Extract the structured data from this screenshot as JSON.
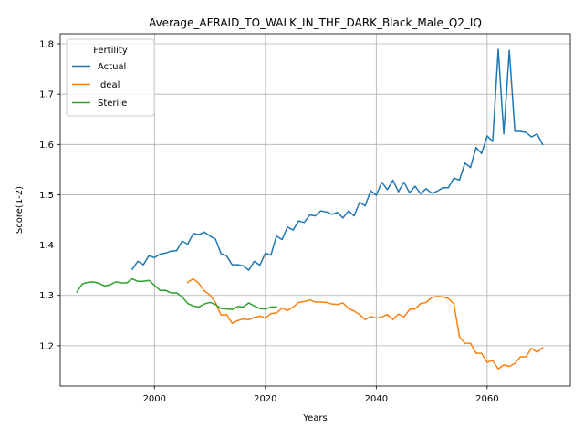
{
  "chart_data": {
    "type": "line",
    "title": "Average_AFRAID_TO_WALK_IN_THE_DARK_Black_Male_Q2_IQ",
    "xlabel": "Years",
    "ylabel": "Score(1-2)",
    "xlim": [
      1983,
      2075
    ],
    "ylim": [
      1.12,
      1.82
    ],
    "xticks": [
      2000,
      2020,
      2040,
      2060
    ],
    "yticks": [
      1.2,
      1.3,
      1.4,
      1.5,
      1.6,
      1.7,
      1.8
    ],
    "grid": true,
    "legend": {
      "title": "Fertility",
      "placement": "top-left"
    },
    "series": [
      {
        "name": "Actual",
        "color": "#1f77b4",
        "x": [
          1996,
          1997,
          1998,
          1999,
          2000,
          2001,
          2002,
          2003,
          2004,
          2005,
          2006,
          2007,
          2008,
          2009,
          2010,
          2011,
          2012,
          2013,
          2014,
          2015,
          2016,
          2017,
          2018,
          2019,
          2020,
          2021,
          2022,
          2023,
          2024,
          2025,
          2026,
          2027,
          2028,
          2029,
          2030,
          2031,
          2032,
          2033,
          2034,
          2035,
          2036,
          2037,
          2038,
          2039,
          2040,
          2041,
          2042,
          2043,
          2044,
          2045,
          2046,
          2047,
          2048,
          2049,
          2050,
          2051,
          2052,
          2053,
          2054,
          2055,
          2056,
          2057,
          2058,
          2059,
          2060,
          2061,
          2062,
          2063,
          2064,
          2065,
          2066,
          2067,
          2068,
          2069,
          2070
        ],
        "y": [
          1.352,
          1.368,
          1.361,
          1.379,
          1.375,
          1.382,
          1.384,
          1.388,
          1.389,
          1.408,
          1.402,
          1.423,
          1.421,
          1.426,
          1.418,
          1.412,
          1.383,
          1.379,
          1.361,
          1.361,
          1.359,
          1.35,
          1.368,
          1.36,
          1.384,
          1.38,
          1.418,
          1.411,
          1.436,
          1.43,
          1.448,
          1.445,
          1.46,
          1.458,
          1.468,
          1.466,
          1.461,
          1.465,
          1.454,
          1.468,
          1.458,
          1.485,
          1.478,
          1.508,
          1.499,
          1.525,
          1.51,
          1.529,
          1.506,
          1.525,
          1.504,
          1.517,
          1.502,
          1.512,
          1.503,
          1.507,
          1.514,
          1.514,
          1.533,
          1.529,
          1.563,
          1.554,
          1.594,
          1.582,
          1.617,
          1.606,
          1.789,
          1.621,
          1.787,
          1.626,
          1.626,
          1.624,
          1.615,
          1.621,
          1.6
        ]
      },
      {
        "name": "Ideal",
        "color": "#ff7f0e",
        "x": [
          2006,
          2007,
          2008,
          2009,
          2010,
          2011,
          2012,
          2013,
          2014,
          2015,
          2016,
          2017,
          2018,
          2019,
          2020,
          2021,
          2022,
          2023,
          2024,
          2025,
          2026,
          2027,
          2028,
          2029,
          2030,
          2031,
          2032,
          2033,
          2034,
          2035,
          2036,
          2037,
          2038,
          2039,
          2040,
          2041,
          2042,
          2043,
          2044,
          2045,
          2046,
          2047,
          2048,
          2049,
          2050,
          2051,
          2052,
          2053,
          2054,
          2055,
          2056,
          2057,
          2058,
          2059,
          2060,
          2061,
          2062,
          2063,
          2064,
          2065,
          2066,
          2067,
          2068,
          2069,
          2070
        ],
        "y": [
          1.326,
          1.333,
          1.324,
          1.309,
          1.301,
          1.286,
          1.261,
          1.262,
          1.245,
          1.25,
          1.253,
          1.252,
          1.256,
          1.259,
          1.255,
          1.264,
          1.265,
          1.275,
          1.27,
          1.277,
          1.286,
          1.288,
          1.291,
          1.287,
          1.287,
          1.286,
          1.283,
          1.282,
          1.285,
          1.274,
          1.269,
          1.262,
          1.252,
          1.258,
          1.255,
          1.257,
          1.262,
          1.252,
          1.263,
          1.257,
          1.272,
          1.273,
          1.284,
          1.286,
          1.296,
          1.298,
          1.297,
          1.294,
          1.283,
          1.218,
          1.205,
          1.205,
          1.185,
          1.185,
          1.167,
          1.171,
          1.154,
          1.162,
          1.159,
          1.165,
          1.178,
          1.178,
          1.195,
          1.187,
          1.196
        ]
      },
      {
        "name": "Sterile",
        "color": "#2ca02c",
        "x": [
          1986,
          1987,
          1988,
          1989,
          1990,
          1991,
          1992,
          1993,
          1994,
          1995,
          1996,
          1997,
          1998,
          1999,
          2000,
          2001,
          2002,
          2003,
          2004,
          2005,
          2006,
          2007,
          2008,
          2009,
          2010,
          2011,
          2012,
          2013,
          2014,
          2015,
          2016,
          2017,
          2018,
          2019,
          2020,
          2021,
          2022
        ],
        "y": [
          1.307,
          1.323,
          1.326,
          1.327,
          1.324,
          1.319,
          1.321,
          1.327,
          1.325,
          1.325,
          1.333,
          1.328,
          1.328,
          1.33,
          1.32,
          1.31,
          1.31,
          1.305,
          1.305,
          1.297,
          1.284,
          1.279,
          1.277,
          1.283,
          1.286,
          1.282,
          1.274,
          1.273,
          1.272,
          1.278,
          1.277,
          1.285,
          1.279,
          1.274,
          1.273,
          1.277,
          1.277
        ]
      }
    ]
  }
}
